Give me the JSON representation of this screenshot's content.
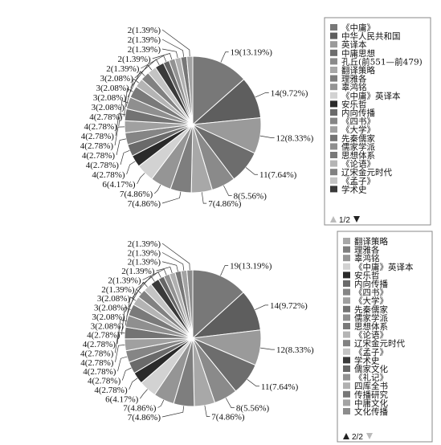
{
  "chart_data": [
    {
      "type": "pie",
      "slices": [
        {
          "label": "《中庸》",
          "value": 19,
          "text": "19(13.19%)",
          "color": "#787878"
        },
        {
          "label": "中华人民共和国",
          "value": 14,
          "text": "14(9.72%)",
          "color": "#5e5e5e"
        },
        {
          "label": "英译本",
          "value": 12,
          "text": "12(8.33%)",
          "color": "#9a9a9a"
        },
        {
          "label": "中庸思想",
          "value": 11,
          "text": "11(7.64%)",
          "color": "#6d6d6d"
        },
        {
          "label": "孔丘(前551—前479)",
          "value": 8,
          "text": "8(5.56%)",
          "color": "#8a8a8a"
        },
        {
          "label": "翻译策略",
          "value": 7,
          "text": "7(4.86%)",
          "color": "#a8a8a8"
        },
        {
          "label": "理雅各",
          "value": 7,
          "text": "7(4.86%)",
          "color": "#7e7e7e"
        },
        {
          "label": "辜鸿铭",
          "value": 7,
          "text": "7(4.86%)",
          "color": "#959595"
        },
        {
          "label": "《中庸》英译本",
          "value": 6,
          "text": "6(4.17%)",
          "color": "#d2d2d2"
        },
        {
          "label": "安乐哲",
          "value": 4,
          "text": "4(2.78%)",
          "color": "#2a2a2a"
        },
        {
          "label": "内向传播",
          "value": 4,
          "text": "4(2.78%)",
          "color": "#6a6a6a"
        },
        {
          "label": "《四书》",
          "value": 4,
          "text": "4(2.78%)",
          "color": "#858585"
        },
        {
          "label": "《大学》",
          "value": 4,
          "text": "4(2.78%)",
          "color": "#a0a0a0"
        },
        {
          "label": "先秦儒家",
          "value": 4,
          "text": "4(2.78%)",
          "color": "#737373"
        },
        {
          "label": "儒家学派",
          "value": 4,
          "text": "4(2.78%)",
          "color": "#8f8f8f"
        },
        {
          "label": "思想体系",
          "value": 4,
          "text": "4(2.78%)",
          "color": "#7a7a7a"
        },
        {
          "label": "《论语》",
          "value": 3,
          "text": "3(2.08%)",
          "color": "#b4b4b4"
        },
        {
          "label": "辽宋金元时代",
          "value": 3,
          "text": "3(2.08%)",
          "color": "#818181"
        },
        {
          "label": "《孟子》",
          "value": 3,
          "text": "3(2.08%)",
          "color": "#c4c4c4"
        },
        {
          "label": "学术史",
          "value": 3,
          "text": "3(2.08%)",
          "color": "#3a3a3a"
        },
        {
          "label": "",
          "value": 2,
          "text": "2(1.39%)",
          "color": "#666666"
        },
        {
          "label": "",
          "value": 2,
          "text": "2(1.39%)",
          "color": "#929292"
        },
        {
          "label": "",
          "value": 2,
          "text": "2(1.39%)",
          "color": "#b0b0b0"
        },
        {
          "label": "",
          "value": 2,
          "text": "2(1.39%)",
          "color": "#777777"
        },
        {
          "label": "",
          "value": 2,
          "text": "2(1.39%)",
          "color": "#a3a3a3"
        }
      ],
      "legend": {
        "items": [
          {
            "label": "《中庸》",
            "color": "#787878"
          },
          {
            "label": "中华人民共和国",
            "color": "#5e5e5e"
          },
          {
            "label": "英译本",
            "color": "#9a9a9a"
          },
          {
            "label": "中庸思想",
            "color": "#6d6d6d"
          },
          {
            "label": "孔丘(前551—前479)",
            "color": "#8a8a8a"
          },
          {
            "label": "翻译策略",
            "color": "#a8a8a8"
          },
          {
            "label": "理雅各",
            "color": "#7e7e7e"
          },
          {
            "label": "辜鸿铭",
            "color": "#959595"
          },
          {
            "label": "《中庸》英译本",
            "color": "#d2d2d2"
          },
          {
            "label": "安乐哲",
            "color": "#2a2a2a"
          },
          {
            "label": "内向传播",
            "color": "#6a6a6a"
          },
          {
            "label": "《四书》",
            "color": "#858585"
          },
          {
            "label": "《大学》",
            "color": "#a0a0a0"
          },
          {
            "label": "先秦儒家",
            "color": "#737373"
          },
          {
            "label": "儒家学派",
            "color": "#8f8f8f"
          },
          {
            "label": "思想体系",
            "color": "#7a7a7a"
          },
          {
            "label": "《论语》",
            "color": "#b4b4b4"
          },
          {
            "label": "辽宋金元时代",
            "color": "#818181"
          },
          {
            "label": "《孟子》",
            "color": "#c4c4c4"
          },
          {
            "label": "学术史",
            "color": "#3a3a3a"
          }
        ],
        "pager": "1/2",
        "pager_up_active": false,
        "pager_down_active": true
      }
    },
    {
      "type": "pie",
      "slices": [
        {
          "label": "",
          "value": 19,
          "text": "19(13.19%)",
          "color": "#787878"
        },
        {
          "label": "",
          "value": 14,
          "text": "14(9.72%)",
          "color": "#5e5e5e"
        },
        {
          "label": "",
          "value": 12,
          "text": "12(8.33%)",
          "color": "#9a9a9a"
        },
        {
          "label": "",
          "value": 11,
          "text": "11(7.64%)",
          "color": "#6d6d6d"
        },
        {
          "label": "",
          "value": 8,
          "text": "8(5.56%)",
          "color": "#8a8a8a"
        },
        {
          "label": "翻译策略",
          "value": 7,
          "text": "7(4.86%)",
          "color": "#a8a8a8"
        },
        {
          "label": "理雅各",
          "value": 7,
          "text": "7(4.86%)",
          "color": "#7e7e7e"
        },
        {
          "label": "辜鸿铭",
          "value": 7,
          "text": "7(4.86%)",
          "color": "#959595"
        },
        {
          "label": "《中庸》英译本",
          "value": 6,
          "text": "6(4.17%)",
          "color": "#d2d2d2"
        },
        {
          "label": "安乐哲",
          "value": 4,
          "text": "4(2.78%)",
          "color": "#2a2a2a"
        },
        {
          "label": "内向传播",
          "value": 4,
          "text": "4(2.78%)",
          "color": "#6a6a6a"
        },
        {
          "label": "《四书》",
          "value": 4,
          "text": "4(2.78%)",
          "color": "#858585"
        },
        {
          "label": "《大学》",
          "value": 4,
          "text": "4(2.78%)",
          "color": "#a0a0a0"
        },
        {
          "label": "先秦儒家",
          "value": 4,
          "text": "4(2.78%)",
          "color": "#737373"
        },
        {
          "label": "儒家学派",
          "value": 4,
          "text": "4(2.78%)",
          "color": "#8f8f8f"
        },
        {
          "label": "思想体系",
          "value": 4,
          "text": "4(2.78%)",
          "color": "#7a7a7a"
        },
        {
          "label": "《论语》",
          "value": 3,
          "text": "3(2.08%)",
          "color": "#b4b4b4"
        },
        {
          "label": "辽宋金元时代",
          "value": 3,
          "text": "3(2.08%)",
          "color": "#818181"
        },
        {
          "label": "《孟子》",
          "value": 3,
          "text": "3(2.08%)",
          "color": "#c4c4c4"
        },
        {
          "label": "学术史",
          "value": 3,
          "text": "3(2.08%)",
          "color": "#3a3a3a"
        },
        {
          "label": "儒家文化",
          "value": 2,
          "text": "2(1.39%)",
          "color": "#666666"
        },
        {
          "label": "《礼记》",
          "value": 2,
          "text": "2(1.39%)",
          "color": "#929292"
        },
        {
          "label": "四库全书",
          "value": 2,
          "text": "2(1.39%)",
          "color": "#b0b0b0"
        },
        {
          "label": "传播研究",
          "value": 2,
          "text": "2(1.39%)",
          "color": "#777777"
        },
        {
          "label": "中庸文化",
          "value": 2,
          "text": "2(1.39%)",
          "color": "#a3a3a3"
        },
        {
          "label": "文化传播",
          "value": 2,
          "text": "2(1.39%)",
          "color": "#8c8c8c"
        }
      ],
      "legend": {
        "items": [
          {
            "label": "翻译策略",
            "color": "#a8a8a8"
          },
          {
            "label": "理雅各",
            "color": "#7e7e7e"
          },
          {
            "label": "辜鸿铭",
            "color": "#959595"
          },
          {
            "label": "《中庸》英译本",
            "color": "#d2d2d2"
          },
          {
            "label": "安乐哲",
            "color": "#2a2a2a"
          },
          {
            "label": "内向传播",
            "color": "#6a6a6a"
          },
          {
            "label": "《四书》",
            "color": "#858585"
          },
          {
            "label": "《大学》",
            "color": "#a0a0a0"
          },
          {
            "label": "先秦儒家",
            "color": "#737373"
          },
          {
            "label": "儒家学派",
            "color": "#8f8f8f"
          },
          {
            "label": "思想体系",
            "color": "#7a7a7a"
          },
          {
            "label": "《论语》",
            "color": "#b4b4b4"
          },
          {
            "label": "辽宋金元时代",
            "color": "#818181"
          },
          {
            "label": "《孟子》",
            "color": "#c4c4c4"
          },
          {
            "label": "学术史",
            "color": "#3a3a3a"
          },
          {
            "label": "儒家文化",
            "color": "#666666"
          },
          {
            "label": "《礼记》",
            "color": "#929292"
          },
          {
            "label": "四库全书",
            "color": "#b0b0b0"
          },
          {
            "label": "传播研究",
            "color": "#777777"
          },
          {
            "label": "中庸文化",
            "color": "#a3a3a3"
          },
          {
            "label": "文化传播",
            "color": "#8c8c8c"
          }
        ],
        "pager": "2/2",
        "pager_up_active": true,
        "pager_down_active": false
      }
    }
  ]
}
